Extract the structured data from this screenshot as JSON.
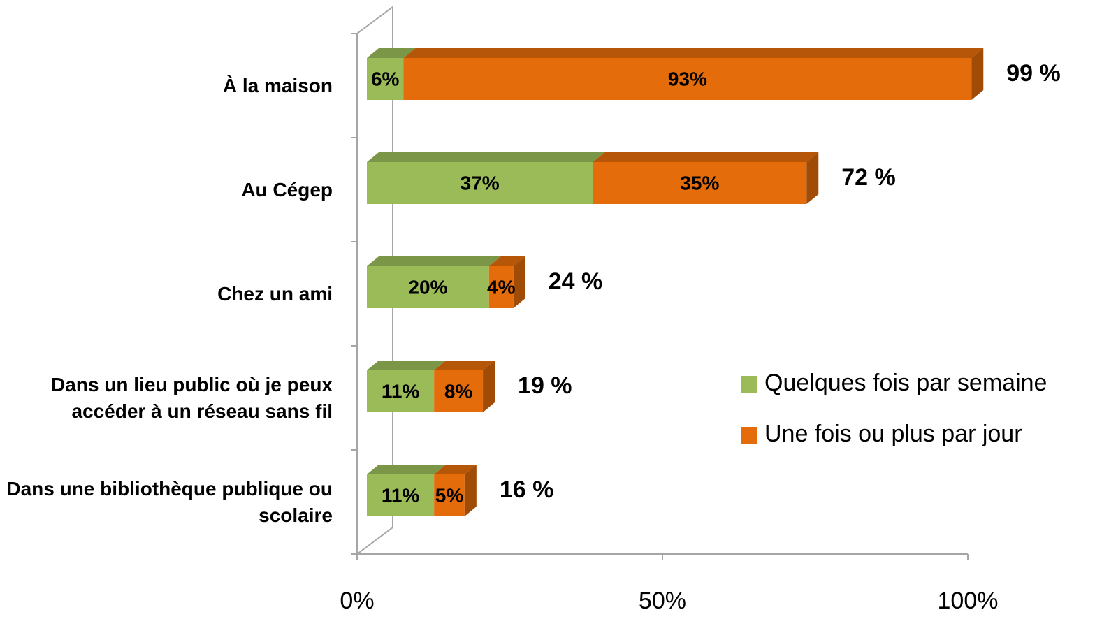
{
  "chart_data": {
    "type": "bar3d_stacked_horizontal",
    "categories": [
      "À la maison",
      "Au Cégep",
      "Chez un ami",
      "Dans un lieu public où je peux accéder à un réseau sans fil",
      "Dans une bibliothèque publique ou scolaire"
    ],
    "series": [
      {
        "name": "Quelques fois par semaine",
        "color": "#9bbb59",
        "values": [
          6,
          37,
          20,
          11,
          11
        ],
        "value_labels": [
          "6%",
          "37%",
          "20%",
          "11%",
          "11%"
        ]
      },
      {
        "name": "Une fois ou plus par jour",
        "color": "#e46c0a",
        "values": [
          93,
          35,
          4,
          8,
          5
        ],
        "value_labels": [
          "93%",
          "35%",
          "4%",
          "8%",
          "5%"
        ]
      }
    ],
    "totals": [
      99,
      72,
      24,
      19,
      16
    ],
    "total_labels": [
      "99 %",
      "72 %",
      "24 %",
      "19 %",
      "16 %"
    ],
    "xlim": [
      0,
      100
    ],
    "xticks": [
      {
        "value": 0,
        "label": "0%"
      },
      {
        "value": 50,
        "label": "50%"
      },
      {
        "value": 100,
        "label": "100%"
      }
    ],
    "legend": "right"
  }
}
